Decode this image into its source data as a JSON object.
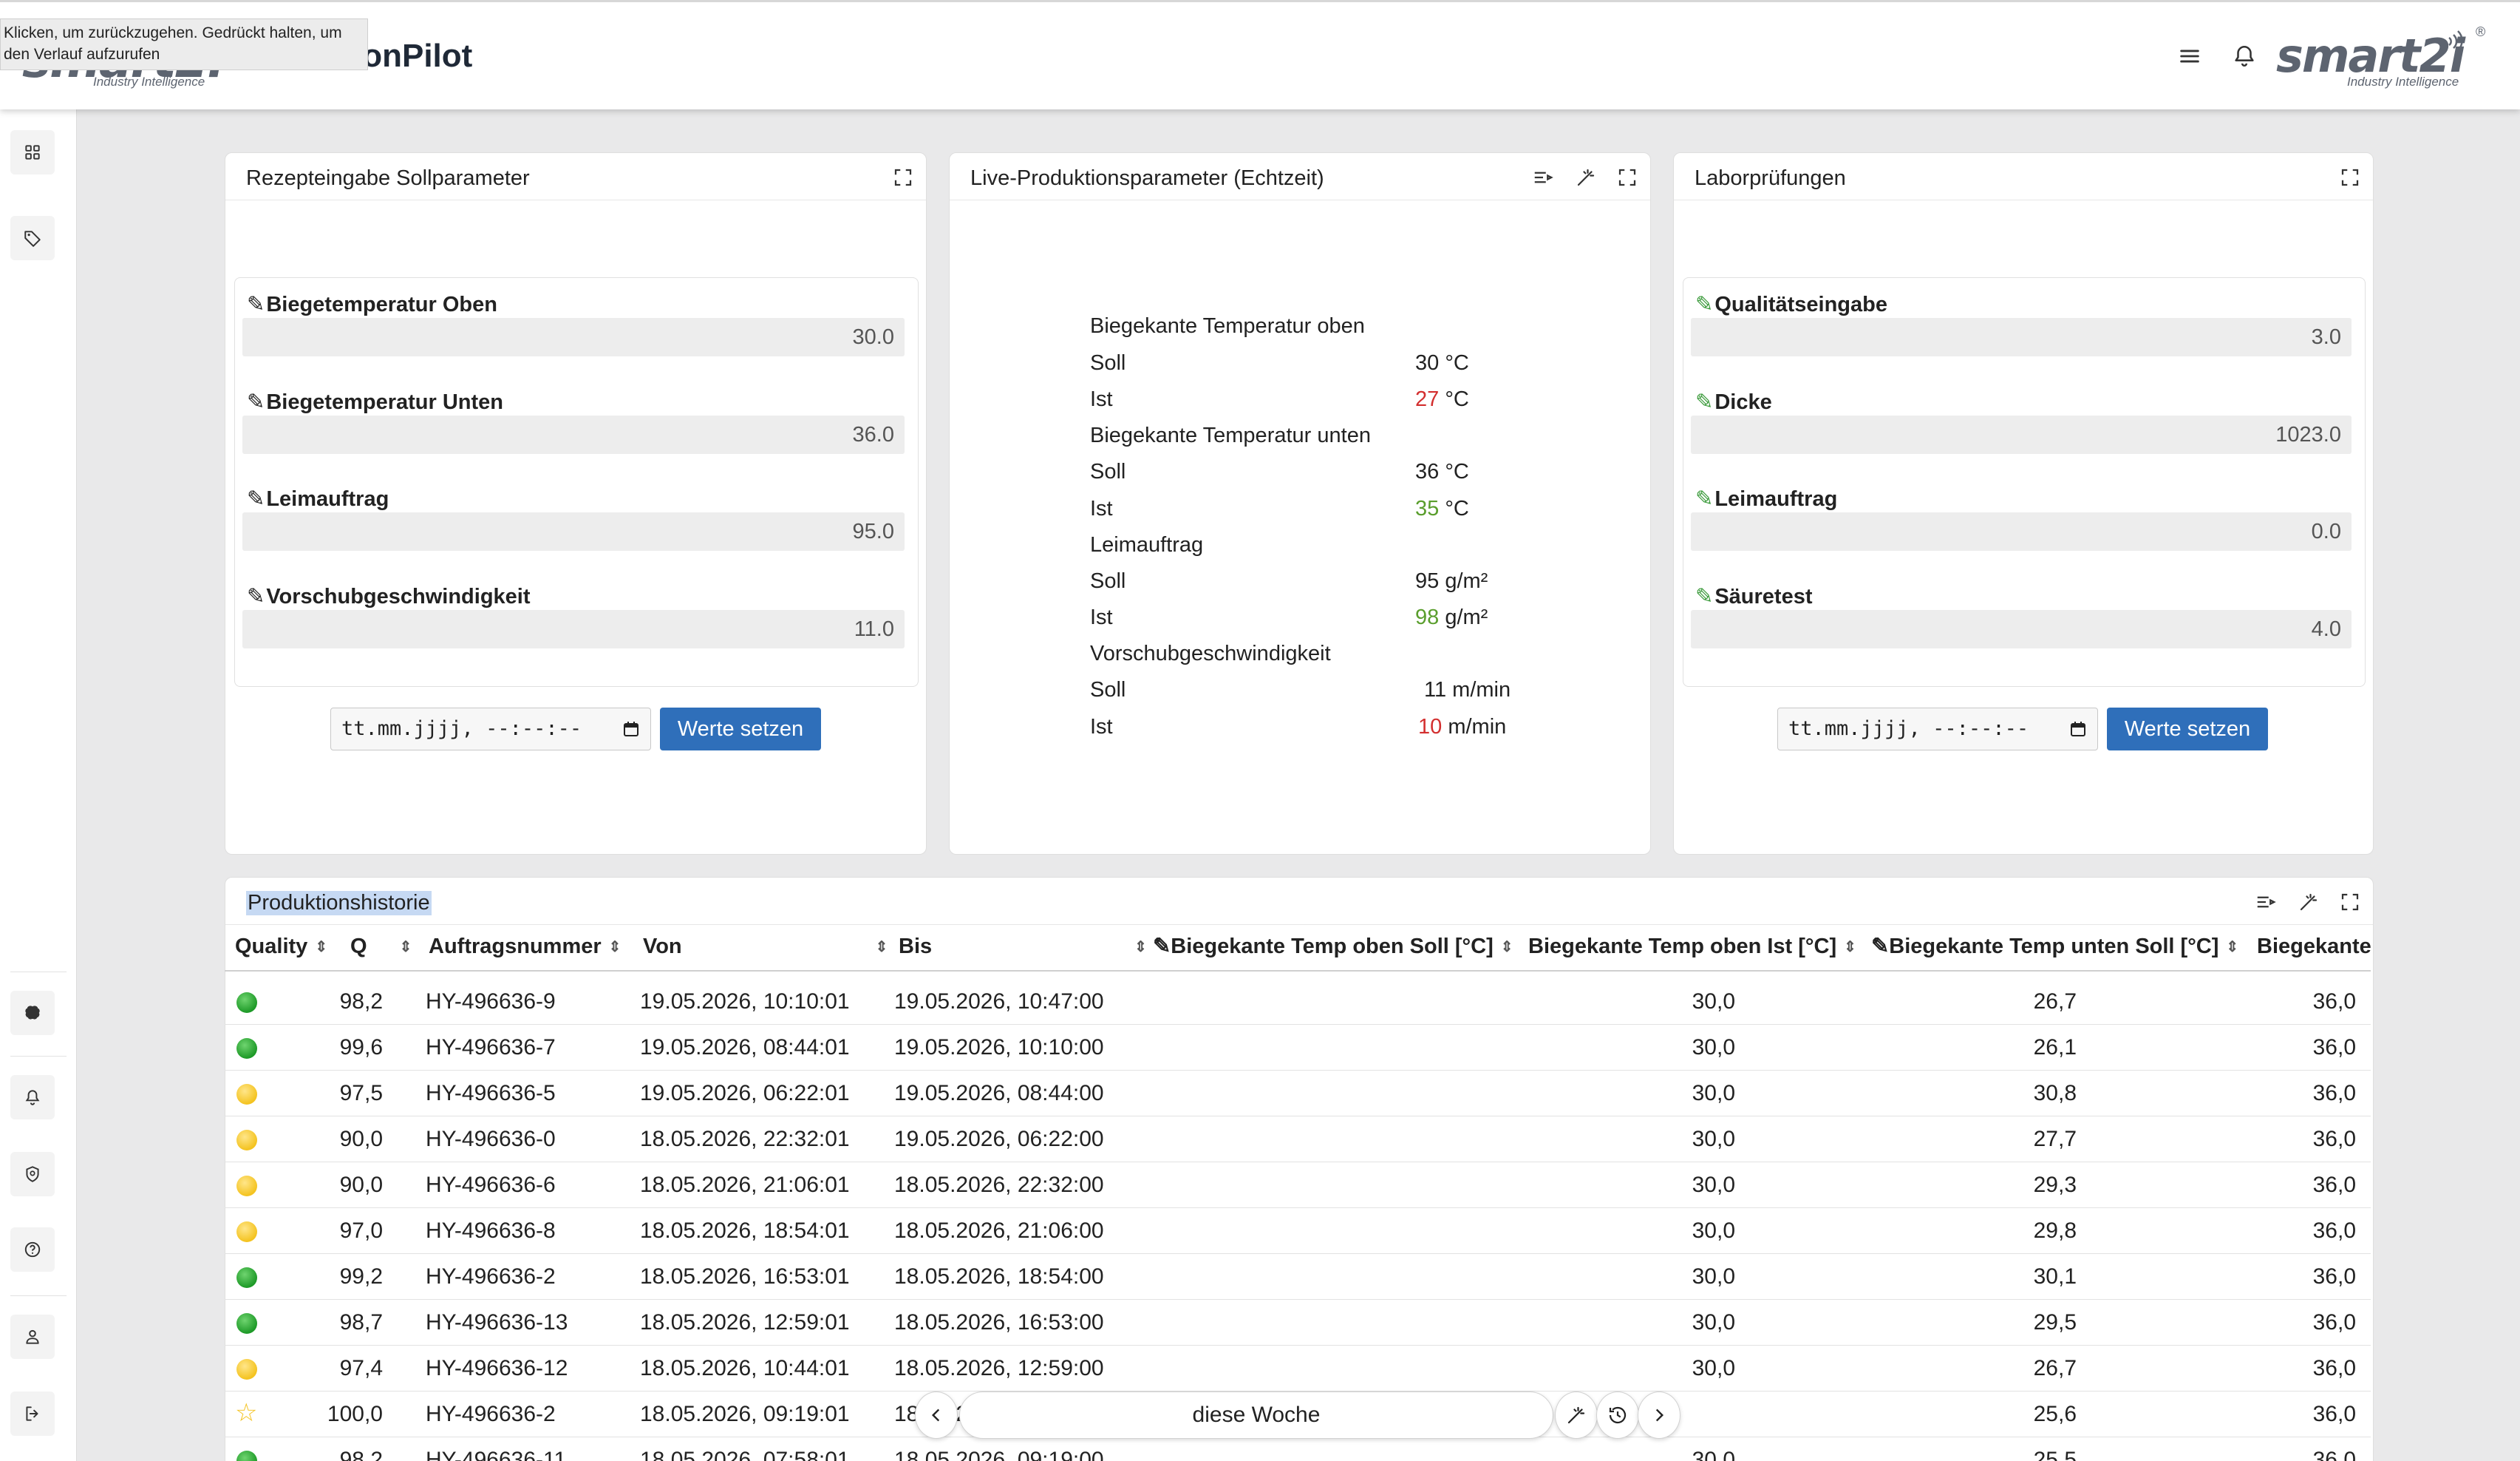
{
  "header": {
    "brand_left": "smart2i",
    "brand_left_sub": "Industry Intelligence",
    "app_title": "ionPilot",
    "tooltip": "Klicken, um zurückzugehen. Gedrückt halten, um den Verlauf aufzurufen",
    "brand_right": "smart2i",
    "brand_right_sub": "Industry Intelligence",
    "brand_right_reg": "®"
  },
  "recipe_panel": {
    "title": "Rezepteingabe Sollparameter",
    "fields": [
      {
        "label": "Biegetemperatur Oben",
        "value": "30.0"
      },
      {
        "label": "Biegetemperatur Unten",
        "value": "36.0"
      },
      {
        "label": "Leimauftrag",
        "value": "95.0"
      },
      {
        "label": "Vorschubgeschwindigkeit",
        "value": "11.0"
      }
    ],
    "datetime_placeholder": "tt.mm.jjjj, --:--:--",
    "button_label": "Werte setzen"
  },
  "live_panel": {
    "title": "Live-Produktionsparameter (Echtzeit)",
    "groups": [
      {
        "name": "Biegekante Temperatur oben",
        "soll_label": "Soll",
        "soll_value": "30",
        "soll_unit": "°C",
        "ist_label": "Ist",
        "ist_value": "27",
        "ist_unit": "°C",
        "ist_status": "red"
      },
      {
        "name": "Biegekante Temperatur unten",
        "soll_label": "Soll",
        "soll_value": "36",
        "soll_unit": "°C",
        "ist_label": "Ist",
        "ist_value": "35",
        "ist_unit": "°C",
        "ist_status": "green"
      },
      {
        "name": "Leimauftrag",
        "soll_label": "Soll",
        "soll_value": "95",
        "soll_unit": "g/m²",
        "ist_label": "Ist",
        "ist_value": "98",
        "ist_unit": "g/m²",
        "ist_status": "green"
      },
      {
        "name": "Vorschubgeschwindigkeit",
        "soll_label": "Soll",
        "soll_value": "11",
        "soll_unit": "m/min",
        "ist_label": "Ist",
        "ist_value": "10",
        "ist_unit": "m/min",
        "ist_status": "red"
      }
    ]
  },
  "lab_panel": {
    "title": "Laborprüfungen",
    "fields": [
      {
        "label": "Qualitätseingabe",
        "value": "3.0"
      },
      {
        "label": "Dicke",
        "value": "1023.0"
      },
      {
        "label": "Leimauftrag",
        "value": "0.0"
      },
      {
        "label": "Säuretest",
        "value": "4.0"
      }
    ],
    "datetime_placeholder": "tt.mm.jjjj, --:--:--",
    "button_label": "Werte setzen"
  },
  "history_panel": {
    "title": "Produktionshistorie",
    "columns": [
      "Quality",
      "Q",
      "Auftragsnummer",
      "Von",
      "Bis",
      "✎Biegekante Temp oben Soll [°C]",
      "Biegekante Temp oben Ist [°C]",
      "✎Biegekante Temp unten Soll [°C]",
      "Biegekante"
    ],
    "rows": [
      {
        "quality": "green",
        "q": "98,2",
        "auftrag": "HY-496636-9",
        "von": "19.05.2026, 10:10:01",
        "bis": "19.05.2026, 10:47:00",
        "oben_soll": "30,0",
        "oben_ist": "26,7",
        "unten_soll": "36,0"
      },
      {
        "quality": "green",
        "q": "99,6",
        "auftrag": "HY-496636-7",
        "von": "19.05.2026, 08:44:01",
        "bis": "19.05.2026, 10:10:00",
        "oben_soll": "30,0",
        "oben_ist": "26,1",
        "unten_soll": "36,0"
      },
      {
        "quality": "yellow",
        "q": "97,5",
        "auftrag": "HY-496636-5",
        "von": "19.05.2026, 06:22:01",
        "bis": "19.05.2026, 08:44:00",
        "oben_soll": "30,0",
        "oben_ist": "30,8",
        "unten_soll": "36,0"
      },
      {
        "quality": "yellow",
        "q": "90,0",
        "auftrag": "HY-496636-0",
        "von": "18.05.2026, 22:32:01",
        "bis": "19.05.2026, 06:22:00",
        "oben_soll": "30,0",
        "oben_ist": "27,7",
        "unten_soll": "36,0"
      },
      {
        "quality": "yellow",
        "q": "90,0",
        "auftrag": "HY-496636-6",
        "von": "18.05.2026, 21:06:01",
        "bis": "18.05.2026, 22:32:00",
        "oben_soll": "30,0",
        "oben_ist": "29,3",
        "unten_soll": "36,0"
      },
      {
        "quality": "yellow",
        "q": "97,0",
        "auftrag": "HY-496636-8",
        "von": "18.05.2026, 18:54:01",
        "bis": "18.05.2026, 21:06:00",
        "oben_soll": "30,0",
        "oben_ist": "29,8",
        "unten_soll": "36,0"
      },
      {
        "quality": "green",
        "q": "99,2",
        "auftrag": "HY-496636-2",
        "von": "18.05.2026, 16:53:01",
        "bis": "18.05.2026, 18:54:00",
        "oben_soll": "30,0",
        "oben_ist": "30,1",
        "unten_soll": "36,0"
      },
      {
        "quality": "green",
        "q": "98,7",
        "auftrag": "HY-496636-13",
        "von": "18.05.2026, 12:59:01",
        "bis": "18.05.2026, 16:53:00",
        "oben_soll": "30,0",
        "oben_ist": "29,5",
        "unten_soll": "36,0"
      },
      {
        "quality": "yellow",
        "q": "97,4",
        "auftrag": "HY-496636-12",
        "von": "18.05.2026, 10:44:01",
        "bis": "18.05.2026, 12:59:00",
        "oben_soll": "30,0",
        "oben_ist": "26,7",
        "unten_soll": "36,0"
      },
      {
        "quality": "star",
        "q": "100,0",
        "auftrag": "HY-496636-2",
        "von": "18.05.2026, 09:19:01",
        "bis": "18.05.2026, 1",
        "oben_soll": "",
        "oben_ist": "25,6",
        "unten_soll": "36,0"
      },
      {
        "quality": "green",
        "q": "98,2",
        "auftrag": "HY-496636-11",
        "von": "18.05.2026, 07:58:01",
        "bis": "18.05.2026, 09:19:00",
        "oben_soll": "30,0",
        "oben_ist": "25,5",
        "unten_soll": "36,0"
      }
    ]
  },
  "bottom_nav": {
    "period_label": "diese Woche"
  },
  "colors": {
    "primary": "#2f6fba",
    "status_red": "#d32f2f",
    "status_green": "#5a9e2d",
    "quality_green": "#1e9a28",
    "quality_yellow": "#f4c320"
  }
}
